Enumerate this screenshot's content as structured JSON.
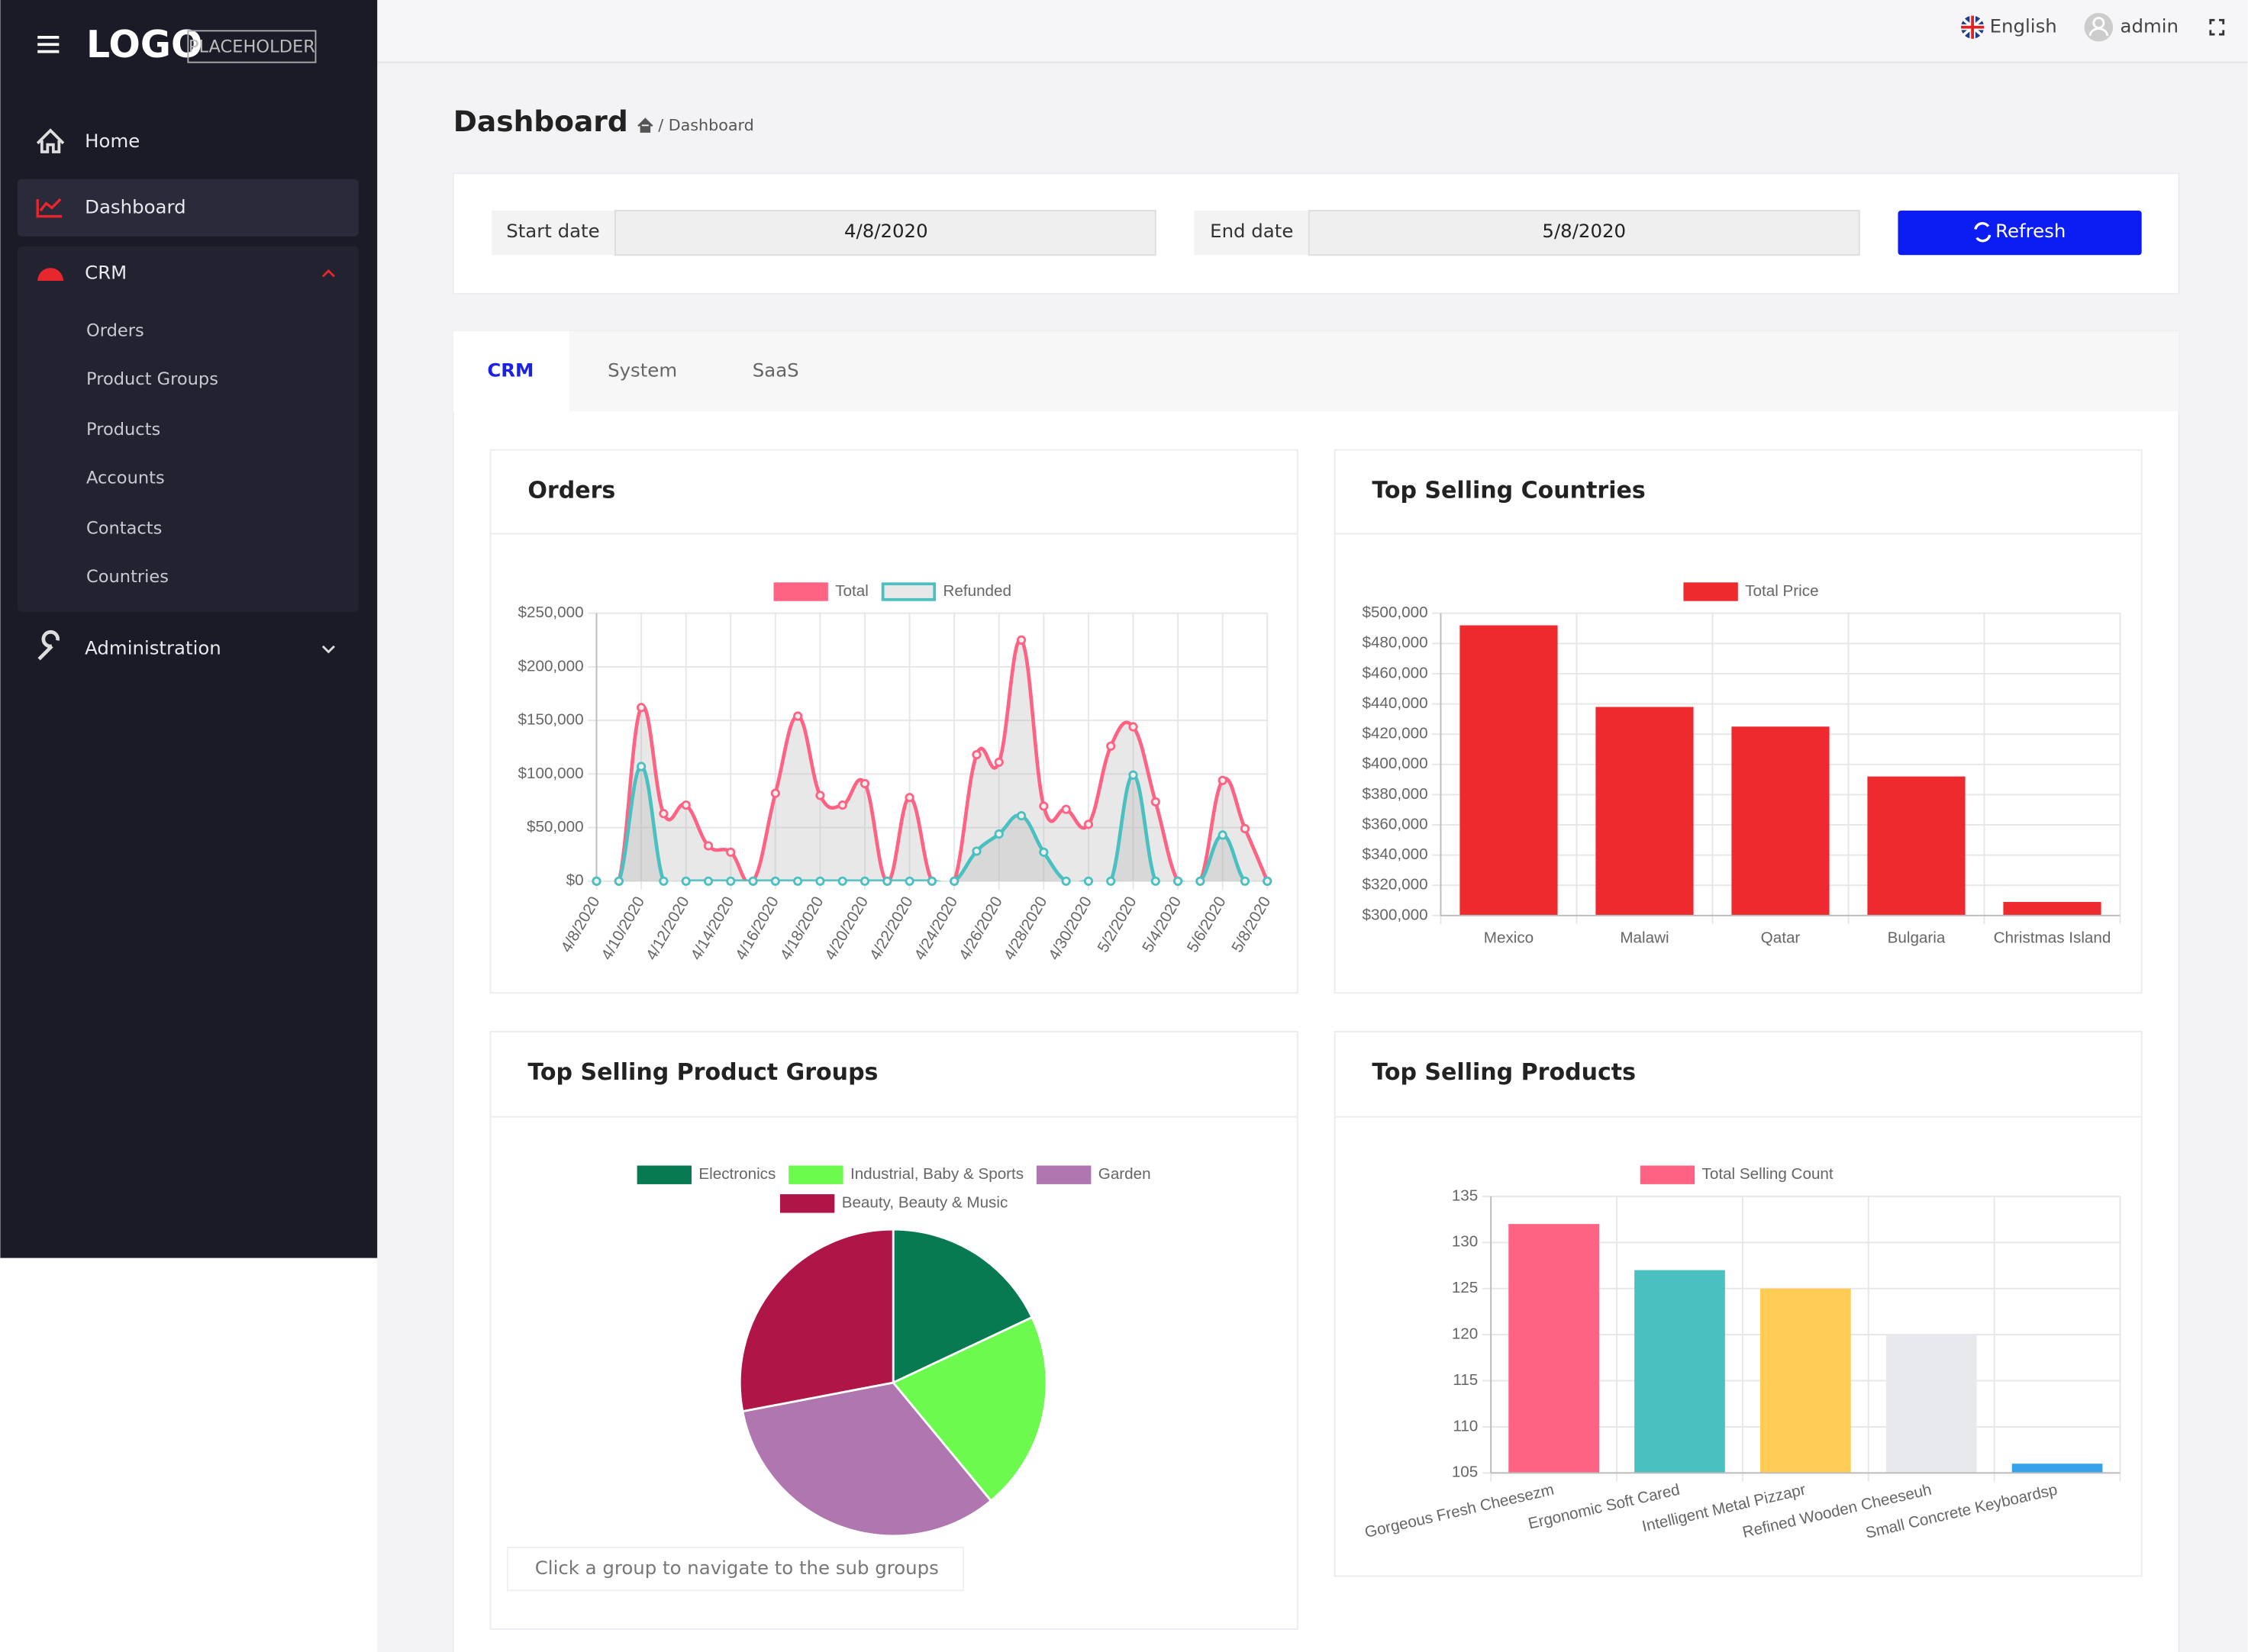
{
  "sidebar": {
    "logo": "LOGO",
    "logo_tag": "PLACEHOLDER",
    "menu": [
      {
        "label": "Home"
      },
      {
        "label": "Dashboard"
      },
      {
        "label": "CRM",
        "children": [
          "Orders",
          "Product Groups",
          "Products",
          "Accounts",
          "Contacts",
          "Countries"
        ]
      },
      {
        "label": "Administration"
      }
    ]
  },
  "topbar": {
    "language": "English",
    "user": "admin"
  },
  "header": {
    "title": "Dashboard",
    "breadcrumb": "/ Dashboard"
  },
  "filters": {
    "start_label": "Start date",
    "start_value": "4/8/2020",
    "end_label": "End date",
    "end_value": "5/8/2020",
    "refresh": "Refresh"
  },
  "tabs": [
    "CRM",
    "System",
    "SaaS"
  ],
  "chart_data": [
    {
      "type": "line",
      "title": "Orders",
      "categories": [
        "4/8/2020",
        null,
        "4/10/2020",
        null,
        "4/12/2020",
        null,
        "4/14/2020",
        null,
        "4/16/2020",
        null,
        "4/18/2020",
        null,
        "4/20/2020",
        null,
        "4/22/2020",
        null,
        "4/24/2020",
        null,
        "4/26/2020",
        null,
        "4/28/2020",
        null,
        "4/30/2020",
        null,
        "5/2/2020",
        null,
        "5/4/2020",
        null,
        "5/6/2020",
        null,
        "5/8/2020"
      ],
      "series": [
        {
          "name": "Total",
          "color": "#ff6384",
          "values": [
            0,
            0,
            162000,
            63000,
            71000,
            33000,
            27000,
            0,
            82000,
            154000,
            80000,
            71000,
            91000,
            0,
            78000,
            0,
            0,
            118000,
            111000,
            225000,
            70000,
            67000,
            53000,
            126000,
            144000,
            74000,
            0,
            0,
            94000,
            49000,
            0
          ]
        },
        {
          "name": "Refunded",
          "color": "#4bc0c0",
          "values": [
            0,
            0,
            107000,
            0,
            0,
            0,
            0,
            0,
            0,
            0,
            0,
            0,
            0,
            0,
            0,
            0,
            0,
            28000,
            44000,
            61000,
            27000,
            0,
            0,
            0,
            99000,
            0,
            0,
            0,
            43000,
            0,
            0
          ]
        }
      ],
      "ylim": [
        0,
        250000
      ],
      "yticks": [
        {
          "value": 0,
          "label": "$0"
        },
        {
          "value": 50000,
          "label": "$50,000"
        },
        {
          "value": 100000,
          "label": "$100,000"
        },
        {
          "value": 150000,
          "label": "$150,000"
        },
        {
          "value": 200000,
          "label": "$200,000"
        },
        {
          "value": 250000,
          "label": "$250,000"
        }
      ],
      "grid": true,
      "legend": "top"
    },
    {
      "type": "bar",
      "title": "Top Selling Countries",
      "categories": [
        "Mexico",
        "Malawi",
        "Qatar",
        "Bulgaria",
        "Christmas Island"
      ],
      "series": [
        {
          "name": "Total Price",
          "color": "#ee2a2e",
          "values": [
            492000,
            438000,
            425000,
            392000,
            309000
          ]
        }
      ],
      "ylim": [
        300000,
        500000
      ],
      "yticks": [
        {
          "value": 300000,
          "label": "$300,000"
        },
        {
          "value": 320000,
          "label": "$320,000"
        },
        {
          "value": 340000,
          "label": "$340,000"
        },
        {
          "value": 360000,
          "label": "$360,000"
        },
        {
          "value": 380000,
          "label": "$380,000"
        },
        {
          "value": 400000,
          "label": "$400,000"
        },
        {
          "value": 420000,
          "label": "$420,000"
        },
        {
          "value": 440000,
          "label": "$440,000"
        },
        {
          "value": 460000,
          "label": "$460,000"
        },
        {
          "value": 480000,
          "label": "$480,000"
        },
        {
          "value": 500000,
          "label": "$500,000"
        }
      ],
      "grid": true,
      "legend": "top"
    },
    {
      "type": "pie",
      "title": "Top Selling Product Groups",
      "categories": [
        "Electronics",
        "Industrial, Baby & Sports",
        "Garden",
        "Beauty, Beauty & Music"
      ],
      "values": [
        18,
        21,
        33,
        28
      ],
      "colors": [
        "#077a52",
        "#6cfa4f",
        "#b076b0",
        "#b01548"
      ],
      "legend": "top",
      "note": "Click a group to navigate to the sub groups"
    },
    {
      "type": "bar",
      "title": "Top Selling Products",
      "categories": [
        "Gorgeous Fresh Cheesezm",
        "Ergonomic Soft Cared",
        "Intelligent Metal Pizzapr",
        "Refined Wooden Cheeseuh",
        "Small Concrete Keyboardsp"
      ],
      "series": [
        {
          "name": "Total Selling Count",
          "colors": [
            "#ff6384",
            "#4bc0c0",
            "#ffcd56",
            "#e7e9ed",
            "#36a2eb"
          ],
          "values": [
            132,
            127,
            125,
            120,
            106
          ]
        }
      ],
      "ylim": [
        105,
        135
      ],
      "yticks": [
        105,
        110,
        115,
        120,
        125,
        130,
        135
      ],
      "grid": true,
      "legend": "top"
    }
  ]
}
